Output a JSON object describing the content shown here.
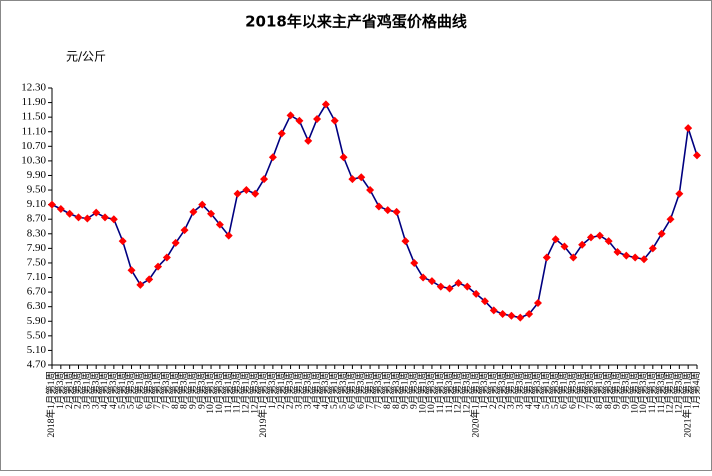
{
  "chart_data": {
    "type": "line",
    "title": "2018年以来主产省鸡蛋价格曲线",
    "y_label": "元/公斤",
    "categories": [
      "2018年1月第1周",
      "1月第3周",
      "2月第1周",
      "2月第3周",
      "3月第1周",
      "3月第3周",
      "4月第1周",
      "4月第3周",
      "5月第1周",
      "5月第3周",
      "6月第1周",
      "6月第3周",
      "7月第1周",
      "7月第3周",
      "8月第1周",
      "8月第3周",
      "9月第1周",
      "9月第3周",
      "10月第1周",
      "10月第3周",
      "11月第1周",
      "11月第3周",
      "12月第1周",
      "12月第3周",
      "2019年1月第1周",
      "1月第3周",
      "2月第1周",
      "2月第3周",
      "3月第1周",
      "3月第3周",
      "4月第1周",
      "4月第3周",
      "5月第1周",
      "5月第3周",
      "6月第1周",
      "6月第3周",
      "7月第1周",
      "7月第3周",
      "8月第1周",
      "8月第3周",
      "9月第1周",
      "9月第3周",
      "10月第1周",
      "10月第3周",
      "11月第1周",
      "11月第3周",
      "12月第1周",
      "12月第3周",
      "2020年1月第1周",
      "1月第3周",
      "2月第1周",
      "2月第3周",
      "3月第1周",
      "3月第3周",
      "4月第1周",
      "4月第3周",
      "5月第1周",
      "5月第3周",
      "6月第1周",
      "6月第3周",
      "7月第1周",
      "7月第3周",
      "8月第1周",
      "8月第3周",
      "9月第1周",
      "9月第3周",
      "10月第1周",
      "10月第3周",
      "11月第1周",
      "11月第3周",
      "12月第1周",
      "12月第3周",
      "2021年1月第1周",
      "1月第4周"
    ],
    "series": [
      {
        "color": "#000080",
        "marker_color": "#ff0000",
        "values": [
          9.1,
          8.98,
          8.85,
          8.75,
          8.72,
          8.88,
          8.75,
          8.7,
          8.1,
          7.3,
          6.9,
          7.05,
          7.4,
          7.65,
          8.05,
          8.4,
          8.9,
          9.1,
          8.85,
          8.55,
          8.25,
          9.4,
          9.5,
          9.4,
          9.8,
          10.4,
          11.05,
          11.55,
          11.4,
          10.85,
          11.45,
          11.85,
          11.4,
          10.4,
          9.8,
          9.85,
          9.5,
          9.05,
          8.95,
          8.9,
          8.1,
          7.5,
          7.1,
          7.0,
          6.85,
          6.8,
          6.95,
          6.85,
          6.65,
          6.45,
          6.2,
          6.1,
          6.05,
          6.0,
          6.1,
          6.4,
          7.65,
          8.15,
          7.95,
          7.65,
          8.0,
          8.2,
          8.25,
          8.1,
          7.8,
          7.7,
          7.65,
          7.6,
          7.9,
          8.3,
          8.7,
          9.4,
          11.2,
          10.45
        ]
      }
    ],
    "ylim": [
      4.7,
      12.3
    ],
    "yticks": [
      {
        "value": 4.7,
        "label": "4.70"
      },
      {
        "value": 5.1,
        "label": "5.10"
      },
      {
        "value": 5.5,
        "label": "5.50"
      },
      {
        "value": 5.9,
        "label": "5.90"
      },
      {
        "value": 6.3,
        "label": "6.30"
      },
      {
        "value": 6.7,
        "label": "6.70"
      },
      {
        "value": 7.1,
        "label": "7.10"
      },
      {
        "value": 7.5,
        "label": "7.50"
      },
      {
        "value": 7.9,
        "label": "7.90"
      },
      {
        "value": 8.3,
        "label": "8.30"
      },
      {
        "value": 8.7,
        "label": "8.70"
      },
      {
        "value": 9.1,
        "label": "9.10"
      },
      {
        "value": 9.5,
        "label": "9.50"
      },
      {
        "value": 9.9,
        "label": "9.90"
      },
      {
        "value": 10.3,
        "label": "10.30"
      },
      {
        "value": 10.7,
        "label": "10.70"
      },
      {
        "value": 11.1,
        "label": "11.10"
      },
      {
        "value": 11.5,
        "label": "11.50"
      },
      {
        "value": 11.9,
        "label": "11.90"
      },
      {
        "value": 12.3,
        "label": "12.30"
      }
    ],
    "grid": false
  }
}
